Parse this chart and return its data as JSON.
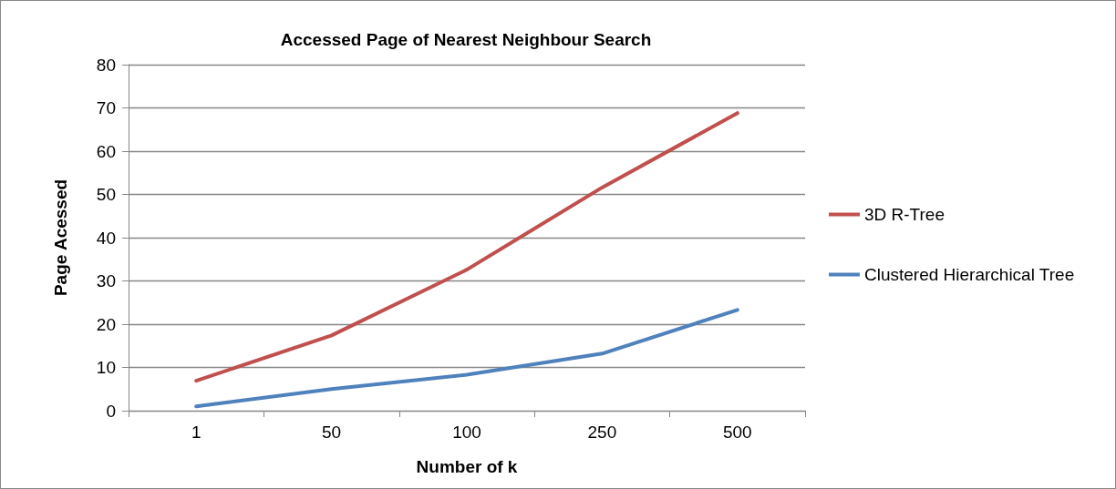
{
  "chart_data": {
    "type": "line",
    "title": "Accessed Page of Nearest Neighbour Search",
    "xlabel": "Number of k",
    "ylabel": "Page Acessed",
    "categories": [
      "1",
      "50",
      "100",
      "250",
      "500"
    ],
    "series": [
      {
        "name": "3D R-Tree",
        "color": "#c0504d",
        "values": [
          6.9,
          17.4,
          32.6,
          51.6,
          68.8
        ]
      },
      {
        "name": "Clustered Hierarchical Tree",
        "color": "#4f81bd",
        "values": [
          1.0,
          5.0,
          8.3,
          13.2,
          23.3
        ]
      }
    ],
    "ylim": [
      0,
      80
    ],
    "yticks": [
      0,
      10,
      20,
      30,
      40,
      50,
      60,
      70,
      80
    ],
    "grid": "y",
    "legend": "right",
    "marker": "none",
    "line_style": "solid"
  }
}
